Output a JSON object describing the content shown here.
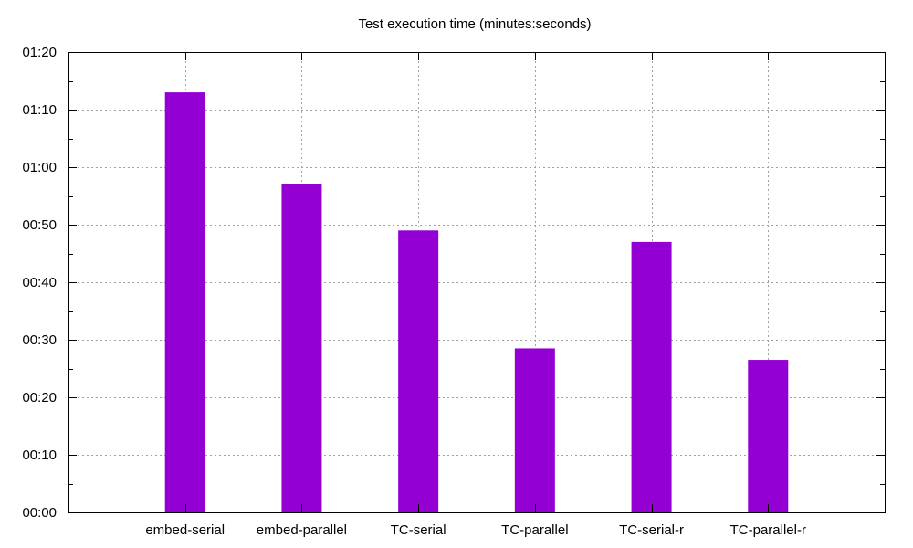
{
  "chart_data": {
    "type": "bar",
    "title": "Test execution time (minutes:seconds)",
    "xlabel": "",
    "ylabel": "",
    "categories": [
      "embed-serial",
      "embed-parallel",
      "TC-serial",
      "TC-parallel",
      "TC-serial-r",
      "TC-parallel-r"
    ],
    "values": [
      73,
      57,
      49,
      28.5,
      47,
      26.5
    ],
    "value_unit": "seconds",
    "ylim": [
      0,
      80
    ],
    "yticks": [
      0,
      10,
      20,
      30,
      40,
      50,
      60,
      70,
      80
    ],
    "ytick_labels": [
      "00:00",
      "00:10",
      "00:20",
      "00:30",
      "00:40",
      "00:50",
      "01:00",
      "01:10",
      "01:20"
    ],
    "grid": true,
    "bar_color": "#9400d3",
    "grid_color": "#a0a0a0"
  }
}
